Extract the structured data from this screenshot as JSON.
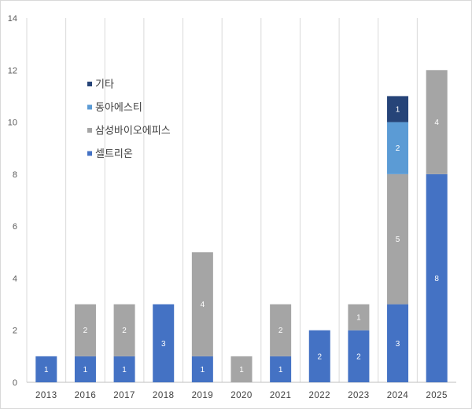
{
  "chart_data": {
    "type": "bar",
    "stacked": true,
    "categories": [
      "2013",
      "2016",
      "2017",
      "2018",
      "2019",
      "2020",
      "2021",
      "2022",
      "2023",
      "2024",
      "2025"
    ],
    "series": [
      {
        "name": "셀트리온",
        "color": "#4472c4",
        "values": [
          1,
          1,
          1,
          3,
          1,
          0,
          1,
          2,
          2,
          3,
          8
        ]
      },
      {
        "name": "삼성바이오에피스",
        "color": "#a5a5a5",
        "values": [
          0,
          2,
          2,
          0,
          4,
          1,
          2,
          0,
          1,
          5,
          4
        ]
      },
      {
        "name": "동아에스티",
        "color": "#5b9bd5",
        "values": [
          0,
          0,
          0,
          0,
          0,
          0,
          0,
          0,
          0,
          2,
          0
        ]
      },
      {
        "name": "기타",
        "color": "#264478",
        "values": [
          0,
          0,
          0,
          0,
          0,
          0,
          0,
          0,
          0,
          1,
          0
        ]
      }
    ],
    "ylim": [
      0,
      14
    ],
    "yticks": [
      0,
      2,
      4,
      6,
      8,
      10,
      12,
      14
    ],
    "grid": "vertical",
    "legend": "top-left",
    "legend_order": [
      "기타",
      "동아에스티",
      "삼성바이오에피스",
      "셀트리온"
    ],
    "title": "",
    "xlabel": "",
    "ylabel": ""
  }
}
